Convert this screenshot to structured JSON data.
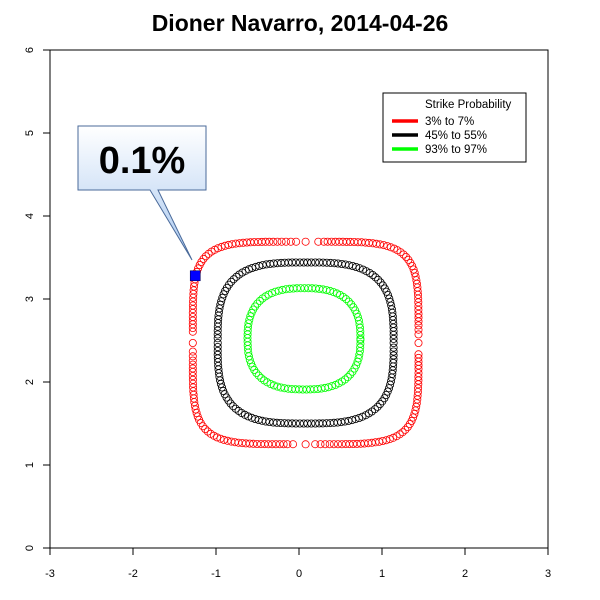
{
  "chart_data": {
    "type": "scatter",
    "title": "Dioner Navarro, 2014-04-26",
    "xlabel": "",
    "ylabel": "",
    "xlim": [
      -3,
      3
    ],
    "ylim": [
      0,
      6
    ],
    "x_ticks": [
      "-3",
      "-2",
      "-1",
      "0",
      "1",
      "2",
      "3"
    ],
    "y_ticks": [
      "0",
      "1",
      "2",
      "3",
      "4",
      "5",
      "6"
    ],
    "grid": false,
    "legend": {
      "title": "Strike Probability",
      "placement": "top-right",
      "entries": [
        {
          "label": "3% to 7%",
          "color": "#ff0000"
        },
        {
          "label": "45% to 55%",
          "color": "#000000"
        },
        {
          "label": "93% to 97%",
          "color": "#00ff00"
        }
      ]
    },
    "series": [
      {
        "name": "3% to 7%",
        "color": "#ff0000",
        "marker": "open-circle",
        "contour": {
          "cx": 0.08,
          "cy": 2.47,
          "rx": 1.36,
          "ry": 1.22,
          "power": 5
        }
      },
      {
        "name": "45% to 55%",
        "color": "#000000",
        "marker": "open-circle",
        "contour": {
          "cx": 0.08,
          "cy": 2.47,
          "rx": 1.06,
          "ry": 0.97,
          "power": 3.2
        }
      },
      {
        "name": "93% to 97%",
        "color": "#00ff00",
        "marker": "open-circle",
        "contour": {
          "cx": 0.06,
          "cy": 2.52,
          "rx": 0.68,
          "ry": 0.61,
          "power": 2.6
        }
      }
    ],
    "pitch": {
      "x": -1.25,
      "y": 3.28,
      "color": "#0000ff",
      "marker": "square"
    },
    "callout": {
      "label": "0.1%"
    }
  }
}
